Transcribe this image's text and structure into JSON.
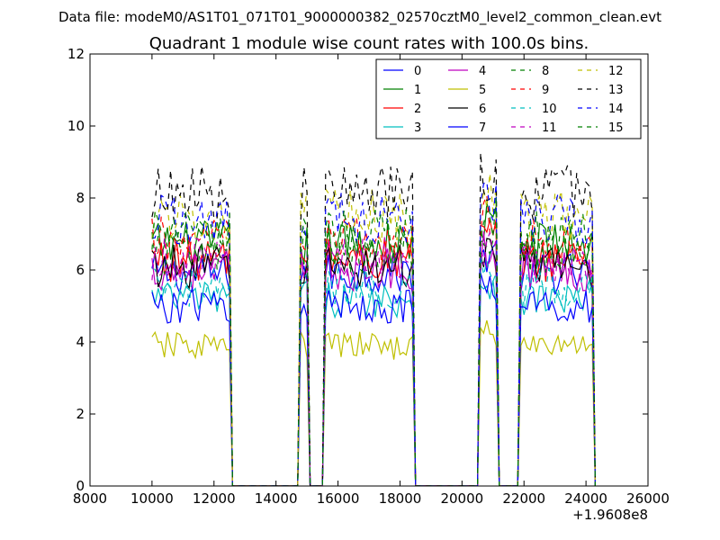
{
  "figure": {
    "header": "Data file: modeM0/AS1T01_071T01_9000000382_02570cztM0_level2_common_clean.evt"
  },
  "chart_data": {
    "type": "line",
    "title": "Quadrant 1 module wise count rates with 100.0s bins.",
    "xlabel": "",
    "ylabel": "",
    "x_offset_label": "+1.9608e8",
    "xlim": [
      8000,
      26000
    ],
    "ylim": [
      0,
      12
    ],
    "x_ticks": [
      8000,
      10000,
      12000,
      14000,
      16000,
      18000,
      20000,
      22000,
      24000,
      26000
    ],
    "y_ticks": [
      0,
      2,
      4,
      6,
      8,
      10,
      12
    ],
    "grid": false,
    "legend_placement": "top-right",
    "legend_columns": 4,
    "colors": {
      "blue": "#0000ff",
      "green": "#008000",
      "red": "#ff0000",
      "cyan": "#00bfbf",
      "magenta": "#bf00bf",
      "olive": "#bfbf00",
      "black": "#000000"
    },
    "gti_segments": [
      [
        10000,
        12500
      ],
      [
        14800,
        15050
      ],
      [
        15600,
        18450
      ],
      [
        20600,
        21100
      ],
      [
        21900,
        24250
      ]
    ],
    "series": [
      {
        "name": "0",
        "color": "#0000ff",
        "dashed": false,
        "level": 5.9
      },
      {
        "name": "1",
        "color": "#008000",
        "dashed": false,
        "level": 6.7
      },
      {
        "name": "2",
        "color": "#ff0000",
        "dashed": false,
        "level": 6.3
      },
      {
        "name": "3",
        "color": "#00bfbf",
        "dashed": false,
        "level": 5.2
      },
      {
        "name": "4",
        "color": "#bf00bf",
        "dashed": false,
        "level": 6.0
      },
      {
        "name": "5",
        "color": "#bfbf00",
        "dashed": false,
        "level": 3.9
      },
      {
        "name": "6",
        "color": "#000000",
        "dashed": false,
        "level": 6.1
      },
      {
        "name": "7",
        "color": "#0000ff",
        "dashed": false,
        "level": 5.0
      },
      {
        "name": "8",
        "color": "#008000",
        "dashed": true,
        "level": 6.5
      },
      {
        "name": "9",
        "color": "#ff0000",
        "dashed": true,
        "level": 6.8
      },
      {
        "name": "10",
        "color": "#00bfbf",
        "dashed": true,
        "level": 5.5
      },
      {
        "name": "11",
        "color": "#bf00bf",
        "dashed": true,
        "level": 6.3
      },
      {
        "name": "12",
        "color": "#bfbf00",
        "dashed": true,
        "level": 7.5
      },
      {
        "name": "13",
        "color": "#000000",
        "dashed": true,
        "level": 8.1
      },
      {
        "name": "14",
        "color": "#0000ff",
        "dashed": true,
        "level": 7.4
      },
      {
        "name": "15",
        "color": "#008000",
        "dashed": true,
        "level": 7.0
      }
    ]
  }
}
